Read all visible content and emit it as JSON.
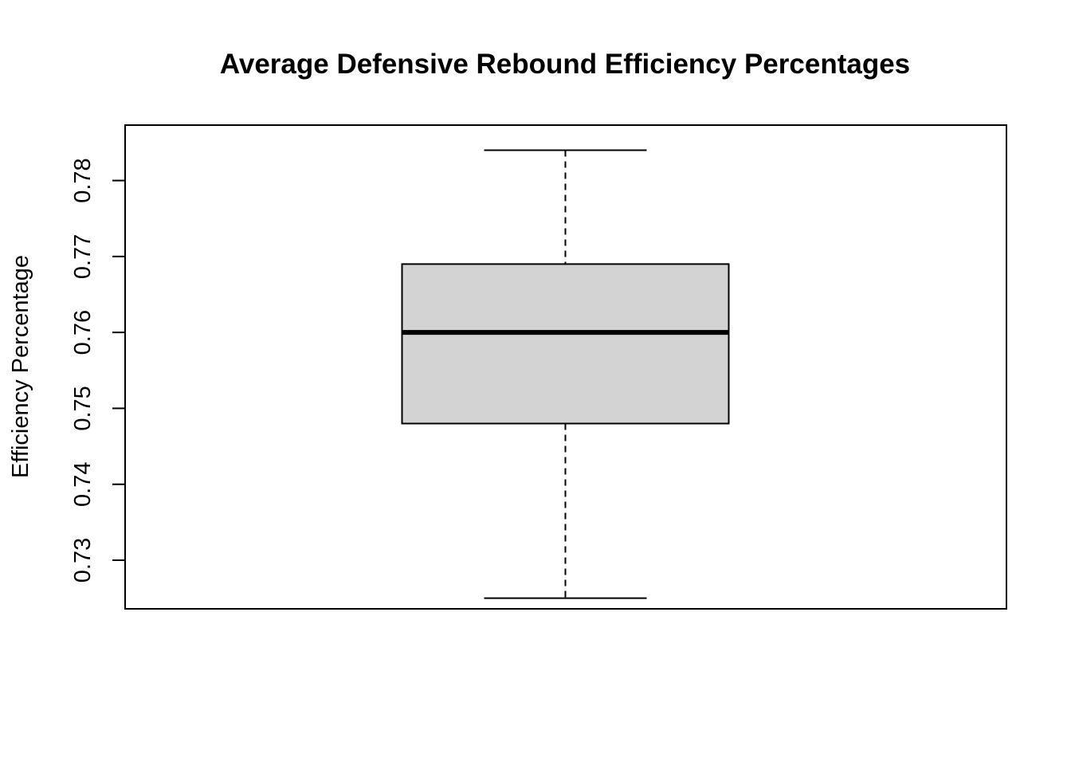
{
  "chart_data": {
    "type": "boxplot",
    "title": "Average Defensive Rebound Efficiency Percentages",
    "xlabel": "",
    "ylabel": "Efficiency Percentage",
    "ylim": [
      0.7236,
      0.7873
    ],
    "y_ticks": [
      0.73,
      0.74,
      0.75,
      0.76,
      0.77,
      0.78
    ],
    "y_tick_labels": [
      "0.73",
      "0.74",
      "0.75",
      "0.76",
      "0.77",
      "0.78"
    ],
    "grid": false,
    "legend": "none",
    "box": {
      "min": 0.725,
      "q1": 0.748,
      "median": 0.76,
      "q3": 0.769,
      "max": 0.784
    },
    "colors": {
      "box_fill": "#d3d3d3",
      "stroke": "#000000",
      "background": "#ffffff"
    }
  }
}
